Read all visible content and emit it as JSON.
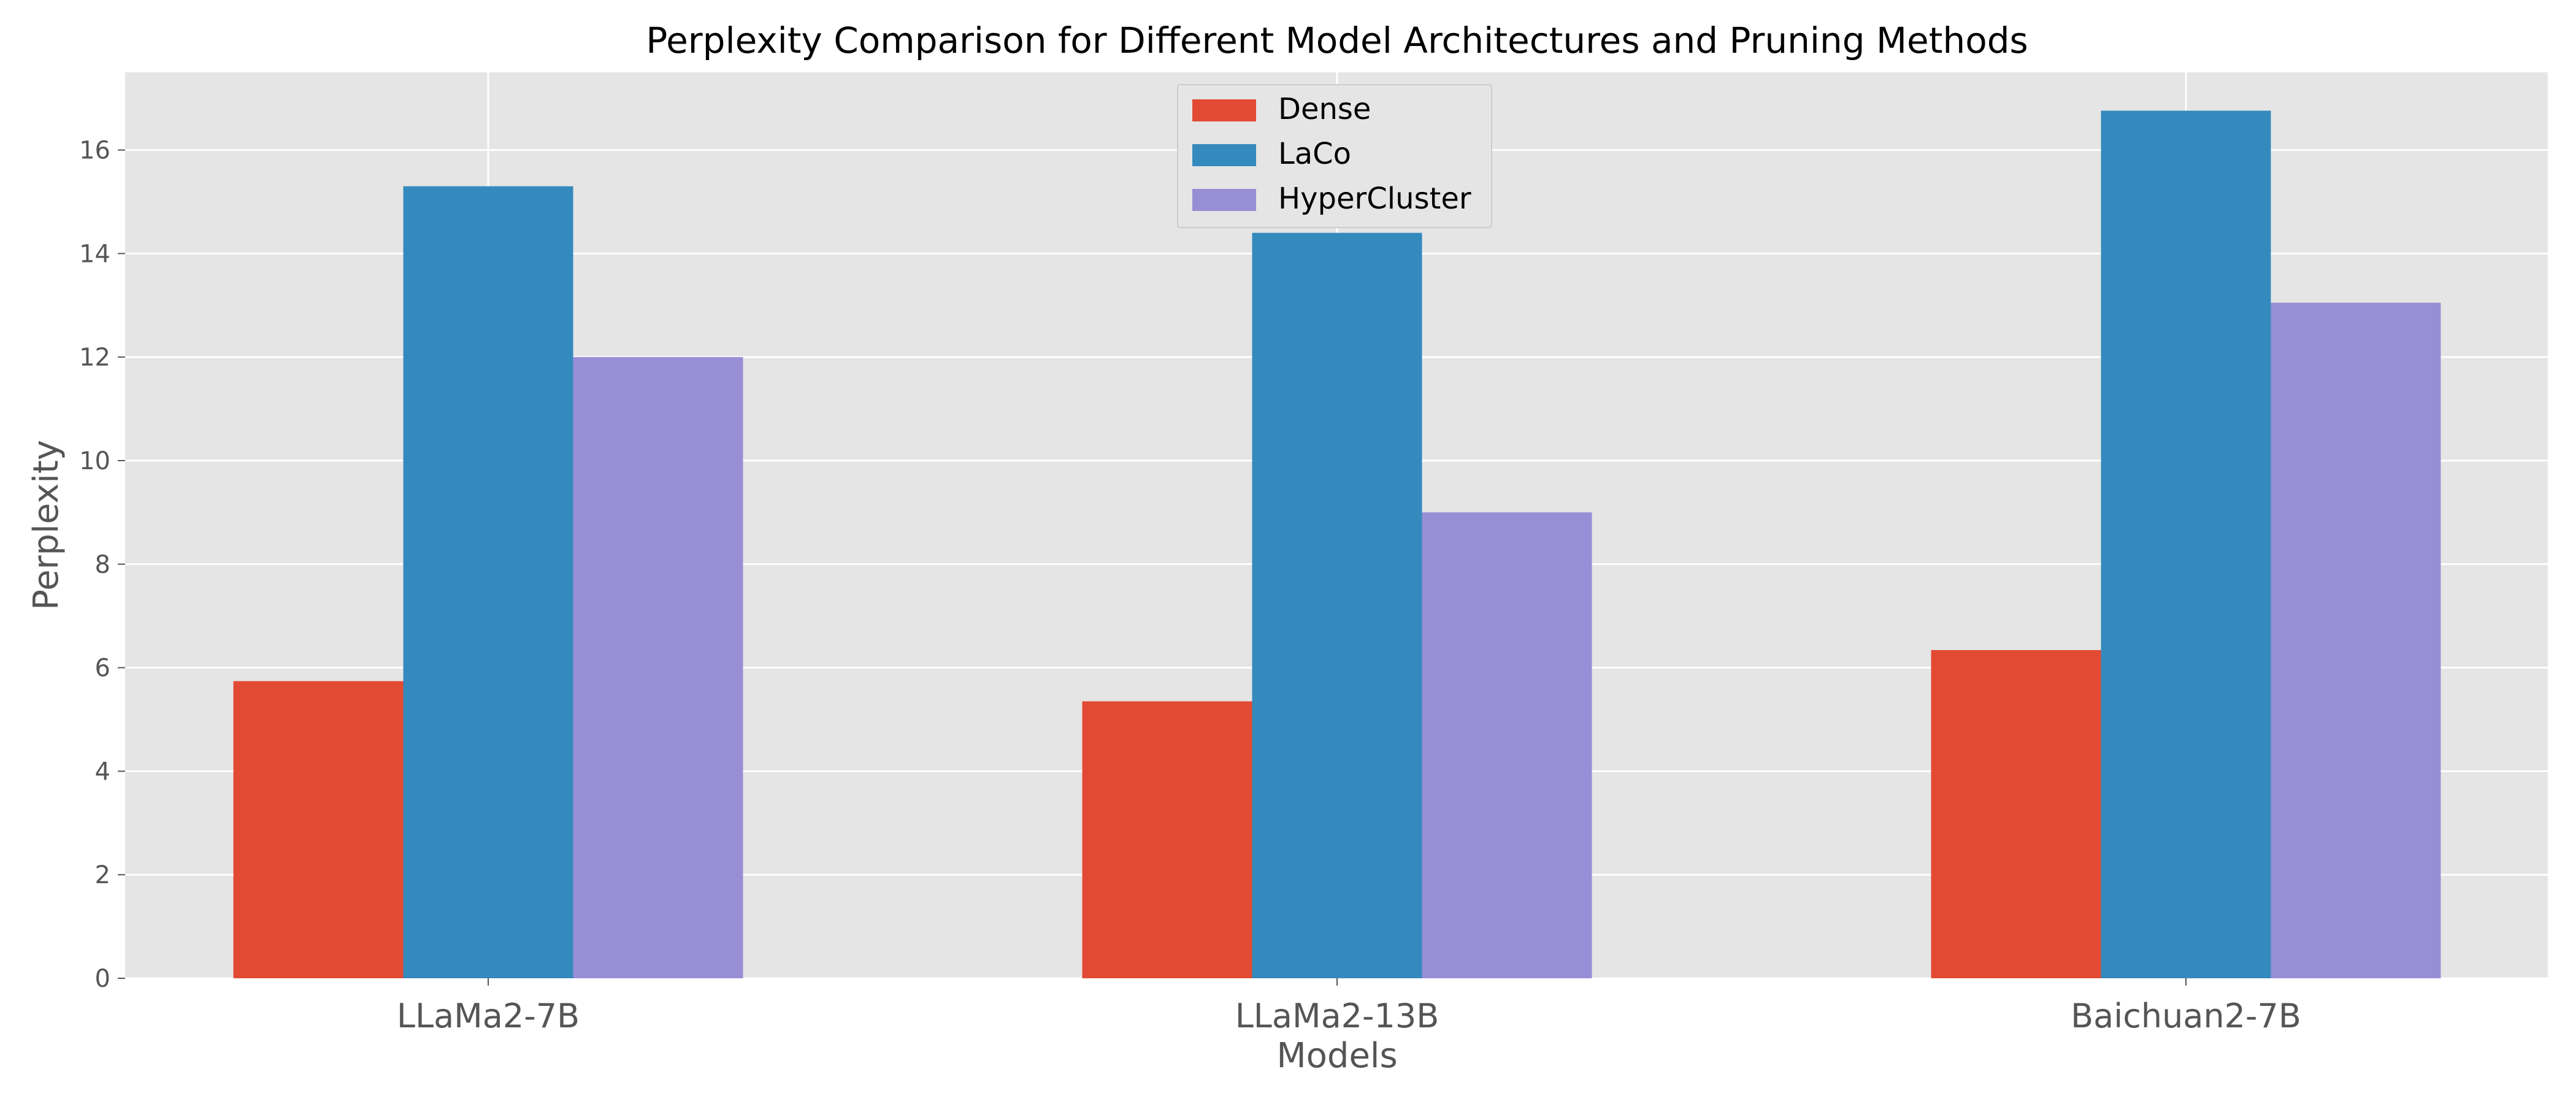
{
  "chart_data": {
    "type": "bar",
    "title": "Perplexity Comparison for Different Model Architectures and Pruning Methods",
    "xlabel": "Models",
    "ylabel": "Perplexity",
    "categories": [
      "LLaMa2-7B",
      "LLaMa2-13B",
      "Baichuan2-7B"
    ],
    "series": [
      {
        "name": "Dense",
        "color": "#E24A33",
        "values": [
          5.74,
          5.35,
          6.34
        ]
      },
      {
        "name": "LaCo",
        "color": "#348ABD",
        "values": [
          15.3,
          14.4,
          16.76
        ]
      },
      {
        "name": "HyperCluster",
        "color": "#988ED5",
        "values": [
          12.0,
          9.0,
          13.05
        ]
      }
    ],
    "ylim": [
      0,
      17.5
    ],
    "yticks": [
      0,
      2,
      4,
      6,
      8,
      10,
      12,
      14,
      16
    ],
    "grid": true,
    "legend_position": "top-center",
    "background_color": "#E5E5E5",
    "grid_color": "#FFFFFF"
  }
}
